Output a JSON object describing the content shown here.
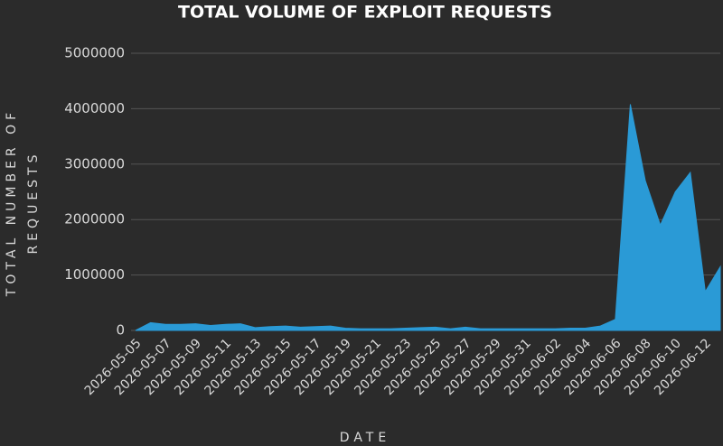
{
  "chart_data": {
    "type": "area",
    "title": "TOTAL VOLUME OF EXPLOIT REQUESTS",
    "x_label": "DATE",
    "y_label": "TOTAL NUMBER OF REQUESTS",
    "categories": [
      "2026-05-05",
      null,
      "2026-05-07",
      null,
      "2026-05-09",
      null,
      "2026-05-11",
      null,
      "2026-05-13",
      null,
      "2026-05-15",
      null,
      "2026-05-17",
      null,
      "2026-05-19",
      null,
      "2026-05-21",
      null,
      "2026-05-23",
      null,
      "2026-05-25",
      null,
      "2026-05-27",
      null,
      "2026-05-29",
      null,
      "2026-05-31",
      null,
      "2026-06-02",
      null,
      "2026-06-04",
      null,
      "2026-06-06",
      null,
      "2026-06-08",
      null,
      "2026-06-10",
      null,
      "2026-06-12",
      null
    ],
    "values": [
      0,
      140000,
      110000,
      110000,
      120000,
      90000,
      110000,
      120000,
      50000,
      70000,
      80000,
      60000,
      70000,
      80000,
      40000,
      30000,
      30000,
      30000,
      40000,
      50000,
      60000,
      30000,
      60000,
      30000,
      30000,
      30000,
      30000,
      30000,
      30000,
      40000,
      40000,
      80000,
      200000,
      4080000,
      2700000,
      1900000,
      2500000,
      2850000,
      700000,
      1150000
    ],
    "color": "#2a9ad6",
    "ylim": [
      0,
      5000000
    ],
    "yticks": [
      0,
      1000000,
      2000000,
      3000000,
      4000000,
      5000000
    ],
    "grid": true
  }
}
